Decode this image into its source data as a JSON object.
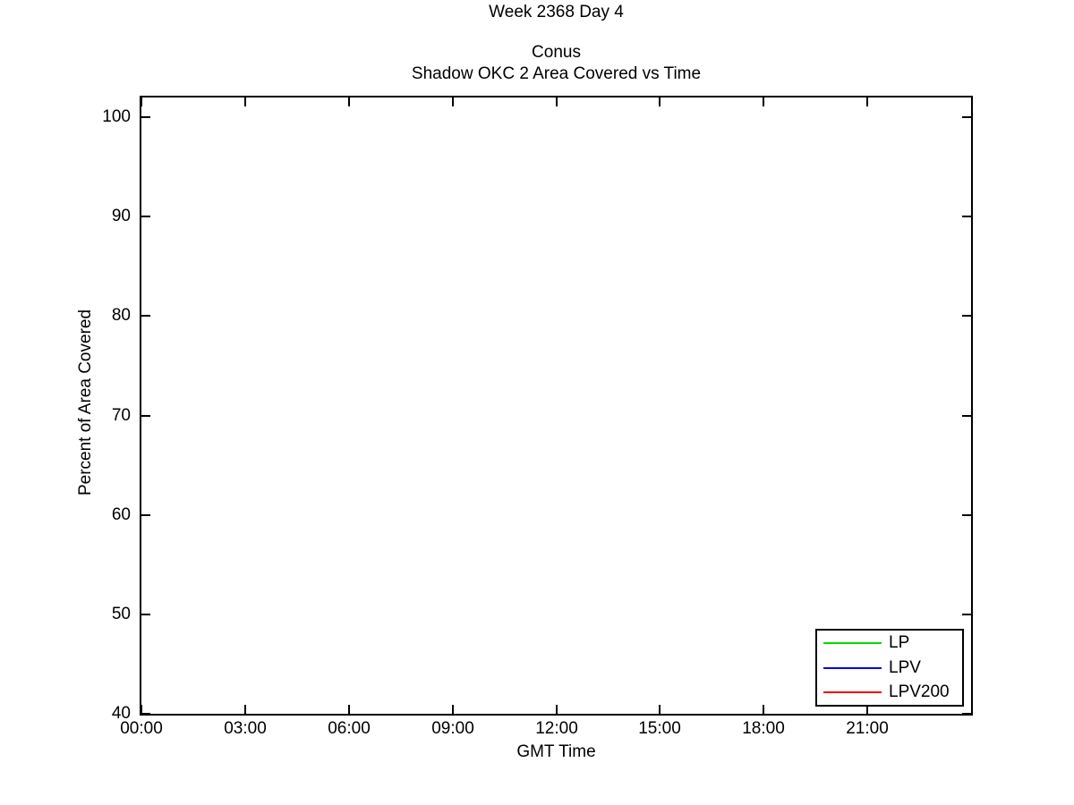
{
  "chart_data": {
    "type": "line",
    "suptitle": "Week 2368 Day 4",
    "title_lines": [
      "Conus",
      "Shadow OKC 2 Area Covered vs Time"
    ],
    "xlabel": "GMT Time",
    "ylabel": "Percent of Area Covered",
    "x_tick_labels": [
      "00:00",
      "03:00",
      "06:00",
      "09:00",
      "12:00",
      "15:00",
      "18:00",
      "21:00"
    ],
    "x_tick_hours": [
      0,
      3,
      6,
      9,
      12,
      15,
      18,
      21
    ],
    "xlim_hours": [
      0,
      24
    ],
    "y_ticks": [
      40,
      50,
      60,
      70,
      80,
      90,
      100
    ],
    "ylim": [
      40,
      102
    ],
    "grid": false,
    "background_color": "#ffffff",
    "axis_color": "#000000",
    "legend": {
      "position": "bottom-right",
      "entries": [
        {
          "label": "LP",
          "color": "#00DC00"
        },
        {
          "label": "LPV",
          "color": "#0000F0"
        },
        {
          "label": "LPV200",
          "color": "#F00000"
        }
      ]
    },
    "series": [
      {
        "name": "LP",
        "color": "#00DC00",
        "x": [],
        "values": []
      },
      {
        "name": "LPV",
        "color": "#0000F0",
        "x": [],
        "values": []
      },
      {
        "name": "LPV200",
        "color": "#F00000",
        "x": [],
        "values": []
      }
    ]
  }
}
